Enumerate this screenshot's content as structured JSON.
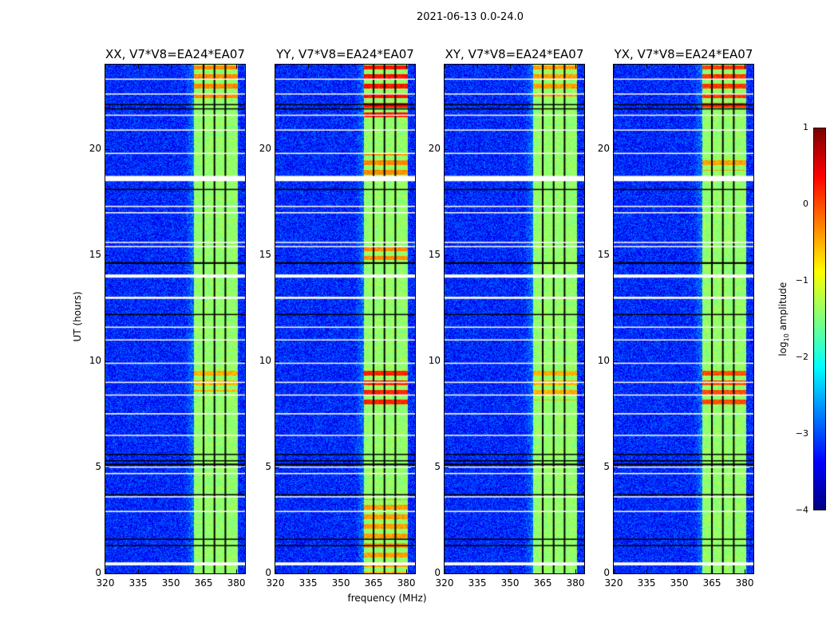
{
  "suptitle": "2021-06-13 0.0-24.0",
  "chart_data": {
    "type": "heatmap",
    "xlabel": "frequency (MHz)",
    "ylabel": "UT (hours)",
    "xlim": [
      320,
      384
    ],
    "ylim": [
      0,
      24
    ],
    "xticks": [
      "320",
      "335",
      "350",
      "365",
      "380"
    ],
    "yticks": [
      "0",
      "5",
      "10",
      "15",
      "20"
    ],
    "xtick_values": [
      320,
      335,
      350,
      365,
      380
    ],
    "ytick_values": [
      0,
      5,
      10,
      15,
      20
    ],
    "colormap": "jet",
    "colorbar": {
      "label": "log10 amplitude",
      "label_base": "log",
      "label_sub": "10",
      "label_rest": " amplitude",
      "range": [
        -4,
        1
      ],
      "ticks": [
        "1",
        "0",
        "−1",
        "−2",
        "−3",
        "−4"
      ],
      "tick_values": [
        1,
        0,
        -1,
        -2,
        -3,
        -4
      ]
    },
    "background_level": -3.2,
    "rfi_band_mhz": [
      360.5,
      380.5
    ],
    "rfi_band_level": -1.4,
    "channel_gaps_mhz": [
      365,
      370,
      375
    ],
    "flagged_rows_white_hours": [
      [
        0.38,
        0.52
      ],
      [
        2.9,
        2.95
      ],
      [
        3.6,
        3.64
      ],
      [
        4.7,
        4.74
      ],
      [
        5.0,
        5.04
      ],
      [
        6.5,
        6.54
      ],
      [
        7.5,
        7.56
      ],
      [
        8.4,
        8.44
      ],
      [
        9.0,
        9.04
      ],
      [
        9.9,
        9.94
      ],
      [
        11.0,
        11.04
      ],
      [
        11.6,
        11.64
      ],
      [
        12.95,
        13.05
      ],
      [
        13.95,
        14.1
      ],
      [
        15.4,
        15.44
      ],
      [
        15.6,
        15.64
      ],
      [
        17.0,
        17.04
      ],
      [
        17.3,
        17.34
      ],
      [
        18.5,
        18.75
      ],
      [
        19.8,
        19.84
      ],
      [
        20.9,
        20.94
      ],
      [
        21.6,
        21.64
      ],
      [
        22.6,
        22.64
      ],
      [
        23.3,
        23.34
      ]
    ],
    "flagged_rows_black_hours": [
      [
        1.3,
        1.34
      ],
      [
        1.6,
        1.64
      ],
      [
        3.7,
        3.74
      ],
      [
        5.1,
        5.18
      ],
      [
        5.3,
        5.34
      ],
      [
        5.6,
        5.64
      ],
      [
        12.2,
        12.24
      ],
      [
        14.6,
        14.68
      ],
      [
        18.1,
        18.14
      ],
      [
        21.9,
        21.94
      ],
      [
        22.1,
        22.14
      ]
    ],
    "panels": [
      {
        "title": "XX, V7*V8=EA24*EA07",
        "hot_periods": [
          {
            "hours": [
              8.6,
              9.6
            ],
            "level": -0.5
          },
          {
            "hours": [
              22.3,
              24
            ],
            "level": -0.3
          }
        ]
      },
      {
        "title": "YY, V7*V8=EA24*EA07",
        "hot_periods": [
          {
            "hours": [
              0,
              3.5
            ],
            "level": -0.4
          },
          {
            "hours": [
              8.0,
              9.8
            ],
            "level": 0.2
          },
          {
            "hours": [
              14.8,
              15.4
            ],
            "level": -0.3
          },
          {
            "hours": [
              18.8,
              19.8
            ],
            "level": -0.3
          },
          {
            "hours": [
              21.5,
              24
            ],
            "level": 0.3
          }
        ]
      },
      {
        "title": "XY, V7*V8=EA24*EA07",
        "hot_periods": [
          {
            "hours": [
              8.2,
              9.6
            ],
            "level": -0.5
          },
          {
            "hours": [
              22.5,
              24
            ],
            "level": -0.4
          }
        ]
      },
      {
        "title": "YX, V7*V8=EA24*EA07",
        "hot_periods": [
          {
            "hours": [
              8.0,
              9.8
            ],
            "level": 0.0
          },
          {
            "hours": [
              19.0,
              19.6
            ],
            "level": -0.4
          },
          {
            "hours": [
              21.8,
              24
            ],
            "level": 0.1
          }
        ]
      }
    ]
  }
}
